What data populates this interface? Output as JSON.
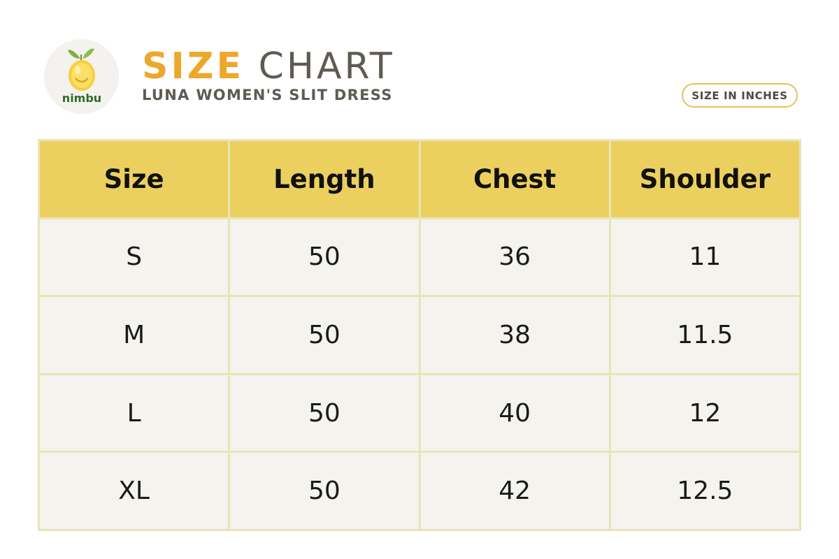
{
  "brand": {
    "logo_text": "nimbu",
    "icon": "lemon-icon"
  },
  "header": {
    "title_word1": "SIZE",
    "title_word2": "CHART",
    "subtitle": "LUNA WOMEN'S SLIT DRESS",
    "units_badge": "SIZE IN INCHES"
  },
  "colors": {
    "accent": "#eda72b",
    "header_fill": "#ecd05f",
    "cell_fill": "#f4f3ee",
    "grid_line": "#e9e4b7",
    "title_gray": "#5f5a52"
  },
  "table": {
    "columns": [
      "Size",
      "Length",
      "Chest",
      "Shoulder"
    ],
    "rows": [
      [
        "S",
        "50",
        "36",
        "11"
      ],
      [
        "M",
        "50",
        "38",
        "11.5"
      ],
      [
        "L",
        "50",
        "40",
        "12"
      ],
      [
        "XL",
        "50",
        "42",
        "12.5"
      ]
    ]
  }
}
